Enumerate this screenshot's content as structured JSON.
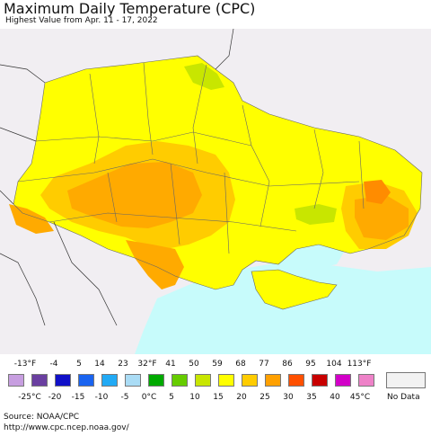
{
  "header": {
    "title": "Maximum Daily Temperature (CPC)",
    "subtitle": "Highest Value from Apr. 11 - 17, 2022"
  },
  "map": {
    "colors": {
      "background": "#f1eef2",
      "sea": "#c7fbfb",
      "yellow": "#ffff00",
      "light_orange": "#ffcc00",
      "orange": "#ffaa00",
      "dark_orange": "#ff8c00",
      "yellow_green": "#c8e600",
      "border": "#666666"
    }
  },
  "legend": {
    "fahrenheit_labels": [
      "-13°F",
      "-4",
      "5",
      "14",
      "23",
      "32°F",
      "41",
      "50",
      "59",
      "68",
      "77",
      "86",
      "95",
      "104",
      "113°F"
    ],
    "celsius_labels": [
      "-25°C",
      "-20",
      "-15",
      "-10",
      "-5",
      "0°C",
      "5",
      "10",
      "15",
      "20",
      "25",
      "30",
      "35",
      "40",
      "45°C"
    ],
    "colors": [
      "#c79ee0",
      "#6a3fa0",
      "#1010c8",
      "#1a64f0",
      "#22aaf5",
      "#aadcf5",
      "#00aa00",
      "#66cc00",
      "#c8e600",
      "#ffff00",
      "#ffcc00",
      "#ffa000",
      "#ff5000",
      "#c80000",
      "#d200c8",
      "#ee82c8"
    ],
    "no_data_label": "No Data"
  },
  "footer": {
    "source": "Source: NOAA/CPC",
    "url": "http://www.cpc.ncep.noaa.gov/"
  }
}
